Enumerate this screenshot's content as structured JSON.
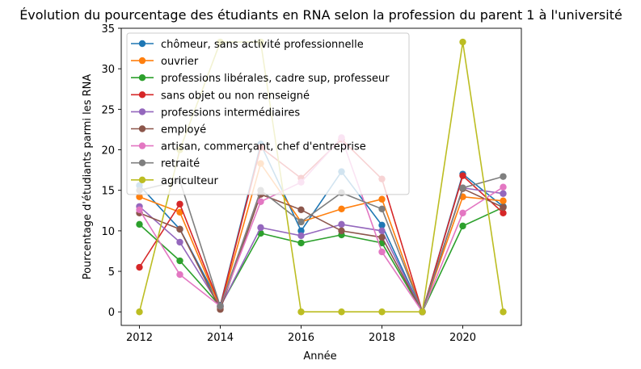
{
  "chart_data": {
    "type": "line",
    "title": "Évolution du pourcentage des étudiants en RNA selon la profession du parent 1 à l'université",
    "xlabel": "Année",
    "ylabel": "Pourcentage d'étudiants parmi les RNA",
    "x": [
      2012,
      2013,
      2014,
      2015,
      2016,
      2017,
      2018,
      2019,
      2020,
      2021
    ],
    "xticks": [
      2012,
      2014,
      2016,
      2018,
      2020
    ],
    "yticks": [
      0,
      5,
      10,
      15,
      20,
      25,
      30,
      35
    ],
    "xlim": [
      2011.55,
      2021.45
    ],
    "ylim": [
      -1.67,
      35
    ],
    "grid": false,
    "legend_position": "upper-left",
    "series": [
      {
        "name": "chômeur, sans activité professionnelle",
        "color": "#1f77b4",
        "values": [
          15.6,
          10.2,
          0.8,
          20.7,
          10.0,
          17.3,
          10.7,
          0.0,
          17.0,
          13.0
        ]
      },
      {
        "name": "ouvrier",
        "color": "#ff7f0e",
        "values": [
          14.2,
          12.3,
          0.5,
          18.3,
          11.1,
          12.7,
          13.9,
          0.0,
          14.2,
          13.7
        ]
      },
      {
        "name": "professions libérales, cadre sup, professeur",
        "color": "#2ca02c",
        "values": [
          10.8,
          6.3,
          0.7,
          9.7,
          8.5,
          9.5,
          8.5,
          0.0,
          10.6,
          12.9
        ]
      },
      {
        "name": "sans objet ou non renseigné",
        "color": "#d62728",
        "values": [
          5.5,
          13.3,
          0.7,
          20.3,
          16.5,
          21.3,
          16.4,
          0.0,
          16.8,
          12.2
        ]
      },
      {
        "name": "professions intermédiaires",
        "color": "#9467bd",
        "values": [
          13.0,
          8.6,
          0.6,
          10.4,
          9.4,
          10.8,
          10.0,
          0.0,
          15.3,
          14.6
        ]
      },
      {
        "name": "employé",
        "color": "#8c564b",
        "values": [
          12.2,
          10.2,
          0.3,
          14.5,
          12.6,
          10.0,
          9.2,
          0.0,
          15.2,
          12.9
        ]
      },
      {
        "name": "artisan, commerçant, chef d'entreprise",
        "color": "#e377c2",
        "values": [
          12.6,
          4.6,
          0.7,
          13.6,
          16.0,
          21.5,
          7.4,
          0.0,
          12.2,
          15.4
        ]
      },
      {
        "name": "retraité",
        "color": "#7f7f7f",
        "values": [
          15.0,
          16.2,
          0.7,
          15.0,
          11.1,
          14.7,
          12.7,
          0.0,
          15.3,
          16.7
        ]
      },
      {
        "name": "agriculteur",
        "color": "#bcbd22",
        "values": [
          0.0,
          20.0,
          33.3,
          33.3,
          0.0,
          0.0,
          0.0,
          0.0,
          33.3,
          0.0
        ]
      }
    ]
  }
}
